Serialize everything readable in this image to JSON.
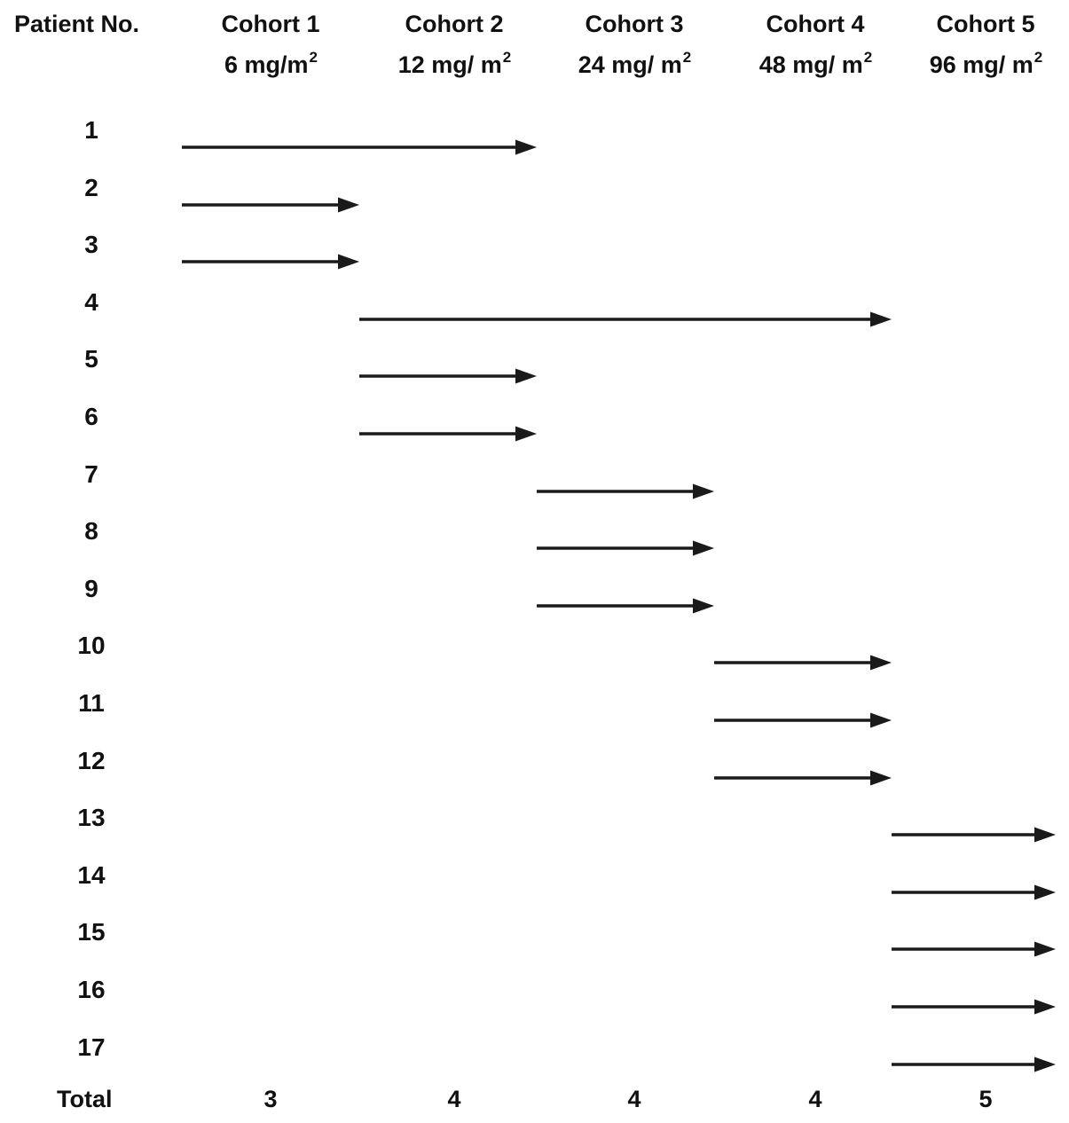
{
  "colors": {
    "background": "#ffffff",
    "text": "#111111",
    "arrow": "#1a1a1a"
  },
  "chart_data": {
    "type": "table",
    "description_visible_only": "dose-escalation cohort assignment diagram; each patient row shows a rightward arrow under the cohort dose received",
    "row_header": "Patient No.",
    "columns": [
      {
        "name": "Cohort 1",
        "dose": "6 mg/m",
        "dose_sup": "2"
      },
      {
        "name": "Cohort 2",
        "dose": "12 mg/ m",
        "dose_sup": "2"
      },
      {
        "name": "Cohort 3",
        "dose": "24 mg/ m",
        "dose_sup": "2"
      },
      {
        "name": "Cohort 4",
        "dose": "48 mg/ m",
        "dose_sup": "2"
      },
      {
        "name": "Cohort 5",
        "dose": "96 mg/ m",
        "dose_sup": "2"
      }
    ],
    "doses_mg_m2": [
      6,
      12,
      24,
      48,
      96
    ],
    "patients": [
      {
        "no": "1",
        "cohort": 1,
        "from_col": 1,
        "cols": 2
      },
      {
        "no": "2",
        "cohort": 1,
        "from_col": 1,
        "cols": 1
      },
      {
        "no": "3",
        "cohort": 1,
        "from_col": 1,
        "cols": 1
      },
      {
        "no": "4",
        "cohort": 2,
        "from_col": 2,
        "cols": 3
      },
      {
        "no": "5",
        "cohort": 2,
        "from_col": 2,
        "cols": 1
      },
      {
        "no": "6",
        "cohort": 2,
        "from_col": 2,
        "cols": 1
      },
      {
        "no": "7",
        "cohort": 3,
        "from_col": 3,
        "cols": 1
      },
      {
        "no": "8",
        "cohort": 3,
        "from_col": 3,
        "cols": 1
      },
      {
        "no": "9",
        "cohort": 3,
        "from_col": 3,
        "cols": 1
      },
      {
        "no": "10",
        "cohort": 4,
        "from_col": 4,
        "cols": 1
      },
      {
        "no": "11",
        "cohort": 4,
        "from_col": 4,
        "cols": 1
      },
      {
        "no": "12",
        "cohort": 4,
        "from_col": 4,
        "cols": 1
      },
      {
        "no": "13",
        "cohort": 5,
        "from_col": 5,
        "cols": 1
      },
      {
        "no": "14",
        "cohort": 5,
        "from_col": 5,
        "cols": 1
      },
      {
        "no": "15",
        "cohort": 5,
        "from_col": 5,
        "cols": 1
      },
      {
        "no": "16",
        "cohort": 5,
        "from_col": 5,
        "cols": 1
      },
      {
        "no": "17",
        "cohort": 5,
        "from_col": 5,
        "cols": 1
      }
    ],
    "total_label": "Total",
    "totals": [
      "3",
      "4",
      "4",
      "4",
      "5"
    ]
  }
}
